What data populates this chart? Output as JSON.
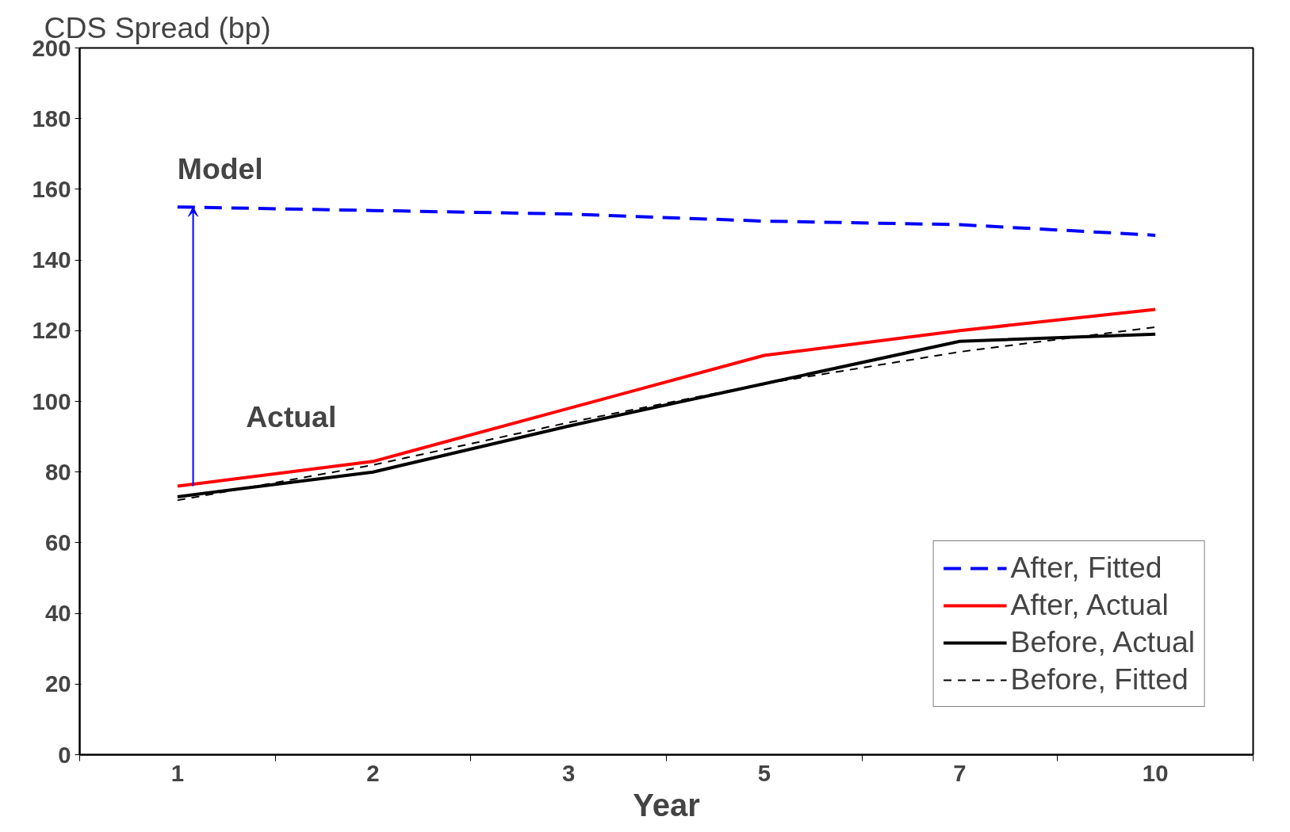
{
  "chart_data": {
    "type": "line",
    "ylabel": "CDS Spread (bp)",
    "xlabel": "Year",
    "categories": [
      "1",
      "2",
      "3",
      "5",
      "7",
      "10"
    ],
    "series": [
      {
        "name": "After, Fitted",
        "color": "#0000ff",
        "line_style": "dashed",
        "values": [
          155,
          154,
          153,
          151,
          150,
          147
        ]
      },
      {
        "name": "After, Actual",
        "color": "#ff0000",
        "line_style": "solid",
        "values": [
          76,
          83,
          98,
          113,
          120,
          126
        ]
      },
      {
        "name": "Before, Actual",
        "color": "#000000",
        "line_style": "solid",
        "values": [
          73,
          80,
          93,
          105,
          117,
          119
        ]
      },
      {
        "name": "Before, Fitted",
        "color": "#000000",
        "line_style": "dashed",
        "values": [
          72,
          82,
          94,
          105,
          114,
          121
        ]
      }
    ],
    "annotations": [
      "Model",
      "Actual"
    ],
    "ylim": [
      0,
      200
    ],
    "yticks": [
      0,
      20,
      40,
      60,
      80,
      100,
      120,
      140,
      160,
      180,
      200
    ],
    "grid": false,
    "legend": "bottom right",
    "marker": "none"
  }
}
